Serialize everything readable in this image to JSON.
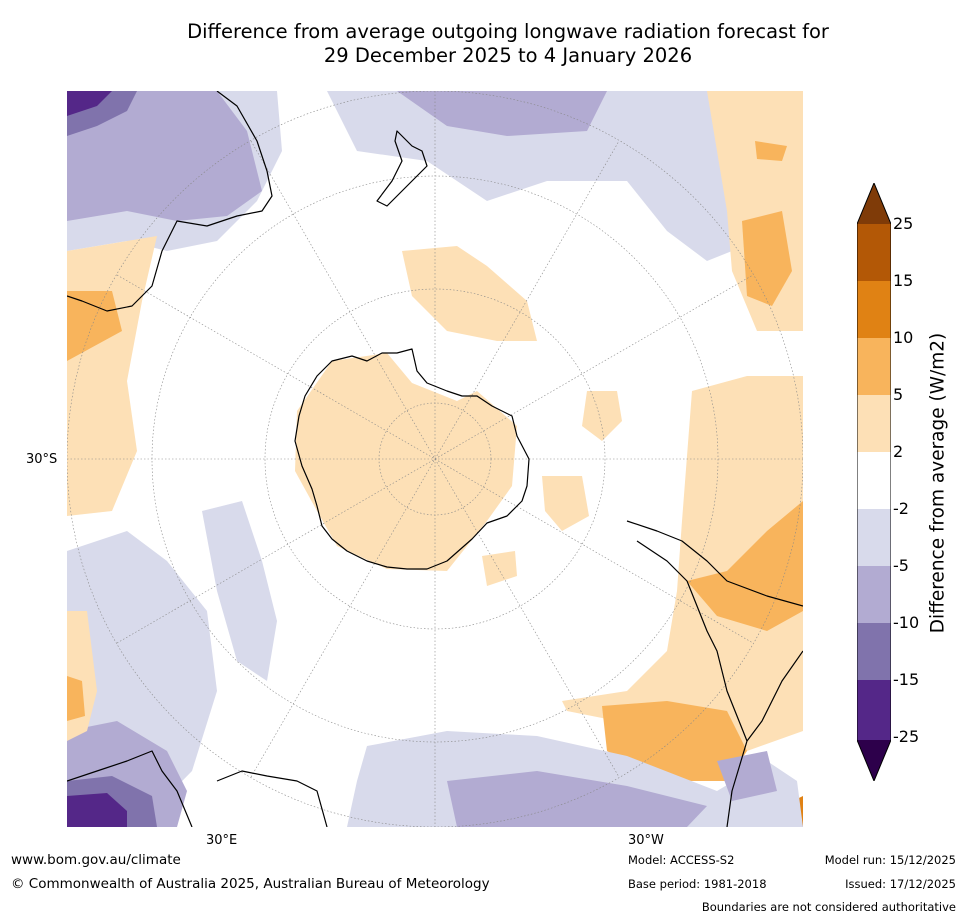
{
  "title_line1": "Difference from average outgoing longwave radiation forecast for",
  "title_line2": "29 December 2025 to 4 January 2026",
  "map": {
    "labels": {
      "lat": "30°S",
      "lon_e": "30°E",
      "lon_w": "30°W"
    },
    "colors": {
      "p2_5": "#fde0b6",
      "p5_10": "#f8b45c",
      "p10_15": "#e08214",
      "p15_25": "#b35806",
      "p25": "#7f3b08",
      "n2_5": "#d8daeb",
      "n5_10": "#b2abd2",
      "n10_15": "#8073ac",
      "n15_25": "#542788",
      "n25": "#2d004b"
    }
  },
  "colorbar": {
    "title": "Difference from average (W/m2)",
    "ticks": [
      "25",
      "15",
      "10",
      "5",
      "2",
      "-2",
      "-5",
      "-10",
      "-15",
      "-25"
    ]
  },
  "footer": {
    "url": "www.bom.gov.au/climate",
    "copyright": "© Commonwealth of Australia 2025, Australian Bureau of Meteorology",
    "model": "Model: ACCESS-S2",
    "base_period": "Base period: 1981-2018",
    "model_run": "Model run: 15/12/2025",
    "issued": "Issued: 17/12/2025",
    "disclaimer": "Boundaries are not considered authoritative"
  }
}
